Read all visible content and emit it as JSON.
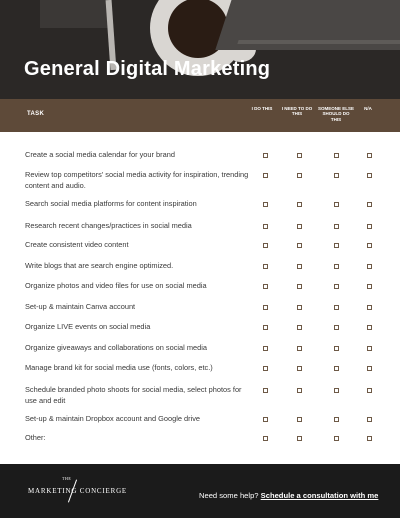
{
  "header": {
    "title": "General Digital Marketing"
  },
  "table": {
    "columns": {
      "task": "TASK",
      "i_do_this": "I DO THIS",
      "i_need_to_do_this": "I NEED TO DO THIS",
      "someone_else": "SOMEONE ELSE SHOULD DO THIS",
      "na": "N/A"
    },
    "rows": [
      {
        "task": "Create a social media calendar for your brand"
      },
      {
        "task": "Review top competitors' social media activity for inspiration, trending content and audio."
      },
      {
        "task": "Search social media platforms for content inspiration"
      },
      {
        "task": "Research recent changes/practices in social media"
      },
      {
        "task": "Create consistent video content"
      },
      {
        "task": "Write blogs that are search engine optimized."
      },
      {
        "task": "Organize photos and video files for use on social media"
      },
      {
        "task": "Set-up & maintain Canva account"
      },
      {
        "task": "Organize LIVE events on social media"
      },
      {
        "task": "Organize giveaways and collaborations on social media"
      },
      {
        "task": "Manage brand kit for social media use (fonts, colors, etc.)"
      },
      {
        "task": "Schedule branded photo shoots for social media, select photos for use and edit"
      },
      {
        "task": "Set-up & maintain Dropbox account and Google drive"
      },
      {
        "task": "Other:"
      }
    ]
  },
  "footer": {
    "logo_the": "THE",
    "logo_text": "MARKETING CONCIERGE",
    "help_text": "Need some help?",
    "help_link": "Schedule a consultation with me"
  },
  "colors": {
    "accent": "#5e4a39",
    "hero_bg": "#2b2826",
    "footer_bg": "#1b1b1b",
    "checkbox": "#6e5a47"
  },
  "icons": {
    "checkbox": "checkbox-icon"
  }
}
